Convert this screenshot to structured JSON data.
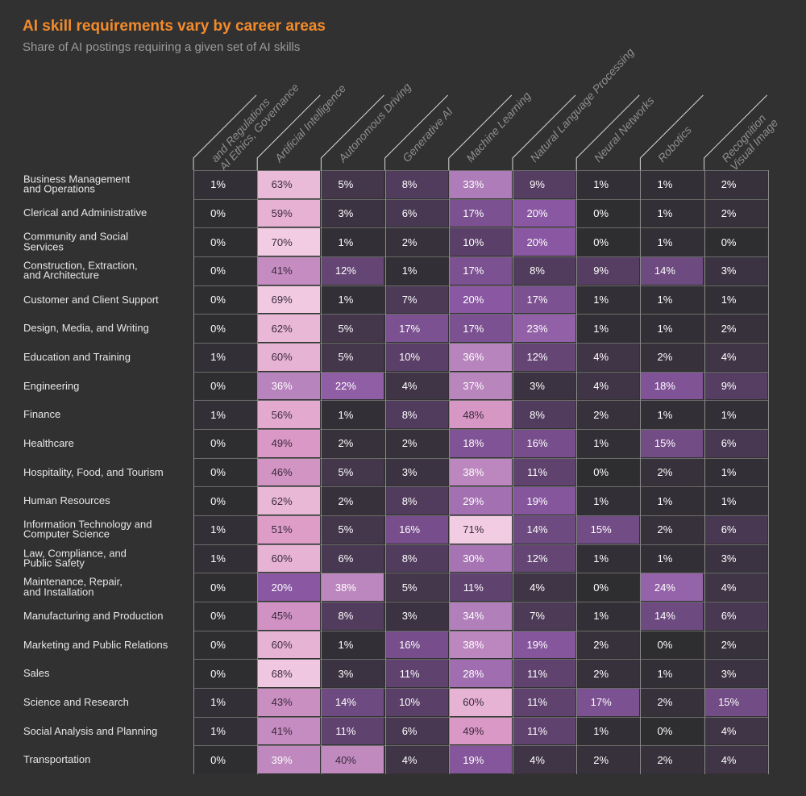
{
  "chart_data": {
    "type": "heatmap",
    "title": "AI skill requirements vary by career areas",
    "subtitle": "Share of AI postings requiring a given set of AI skills",
    "columns": [
      [
        "AI Ethics, Governance",
        "and Regulations"
      ],
      [
        "Artificial Intelligence"
      ],
      [
        "Autonomous Driving"
      ],
      [
        "Generative AI"
      ],
      [
        "Machine Learning"
      ],
      [
        "Natural Language Processing"
      ],
      [
        "Neural Networks"
      ],
      [
        "Robotics"
      ],
      [
        "Visual Image",
        "Recognition"
      ]
    ],
    "unit": "%",
    "rows": [
      {
        "label": "Business Management\nand Operations",
        "values": [
          1,
          63,
          5,
          8,
          33,
          9,
          1,
          1,
          2
        ]
      },
      {
        "label": "Clerical and Administrative",
        "values": [
          0,
          59,
          3,
          6,
          17,
          20,
          0,
          1,
          2
        ]
      },
      {
        "label": "Community and Social\nServices",
        "values": [
          0,
          70,
          1,
          2,
          10,
          20,
          0,
          1,
          0
        ]
      },
      {
        "label": "Construction, Extraction,\nand Architecture",
        "values": [
          0,
          41,
          12,
          1,
          17,
          8,
          9,
          14,
          3
        ]
      },
      {
        "label": "Customer and Client Support",
        "values": [
          0,
          69,
          1,
          7,
          20,
          17,
          1,
          1,
          1
        ]
      },
      {
        "label": "Design, Media, and Writing",
        "values": [
          0,
          62,
          5,
          17,
          17,
          23,
          1,
          1,
          2
        ]
      },
      {
        "label": "Education and Training",
        "values": [
          1,
          60,
          5,
          10,
          36,
          12,
          4,
          2,
          4
        ]
      },
      {
        "label": "Engineering",
        "values": [
          0,
          36,
          22,
          4,
          37,
          3,
          4,
          18,
          9
        ]
      },
      {
        "label": "Finance",
        "values": [
          1,
          56,
          1,
          8,
          48,
          8,
          2,
          1,
          1
        ]
      },
      {
        "label": "Healthcare",
        "values": [
          0,
          49,
          2,
          2,
          18,
          16,
          1,
          15,
          6
        ]
      },
      {
        "label": "Hospitality, Food, and Tourism",
        "values": [
          0,
          46,
          5,
          3,
          38,
          11,
          0,
          2,
          1
        ]
      },
      {
        "label": "Human Resources",
        "values": [
          0,
          62,
          2,
          8,
          29,
          19,
          1,
          1,
          1
        ]
      },
      {
        "label": "Information Technology and\nComputer Science",
        "values": [
          1,
          51,
          5,
          16,
          71,
          14,
          15,
          2,
          6
        ]
      },
      {
        "label": "Law, Compliance, and\nPublic Safety",
        "values": [
          1,
          60,
          6,
          8,
          30,
          12,
          1,
          1,
          3
        ]
      },
      {
        "label": "Maintenance, Repair,\nand Installation",
        "values": [
          0,
          20,
          38,
          5,
          11,
          4,
          0,
          24,
          4
        ]
      },
      {
        "label": "Manufacturing and Production",
        "values": [
          0,
          45,
          8,
          3,
          34,
          7,
          1,
          14,
          6
        ]
      },
      {
        "label": "Marketing and Public Relations",
        "values": [
          0,
          60,
          1,
          16,
          38,
          19,
          2,
          0,
          2
        ]
      },
      {
        "label": "Sales",
        "values": [
          0,
          68,
          3,
          11,
          28,
          11,
          2,
          1,
          3
        ]
      },
      {
        "label": "Science and Research",
        "values": [
          1,
          43,
          14,
          10,
          60,
          11,
          17,
          2,
          15
        ]
      },
      {
        "label": "Social Analysis and Planning",
        "values": [
          1,
          41,
          11,
          6,
          49,
          11,
          1,
          0,
          4
        ]
      },
      {
        "label": "Transportation",
        "values": [
          0,
          39,
          40,
          4,
          19,
          4,
          2,
          2,
          4
        ]
      }
    ],
    "color_scale": [
      "#2e2d30",
      "#5a4068",
      "#8a58a2",
      "#b482bc",
      "#dc9ac6",
      "#f2cce3"
    ]
  }
}
